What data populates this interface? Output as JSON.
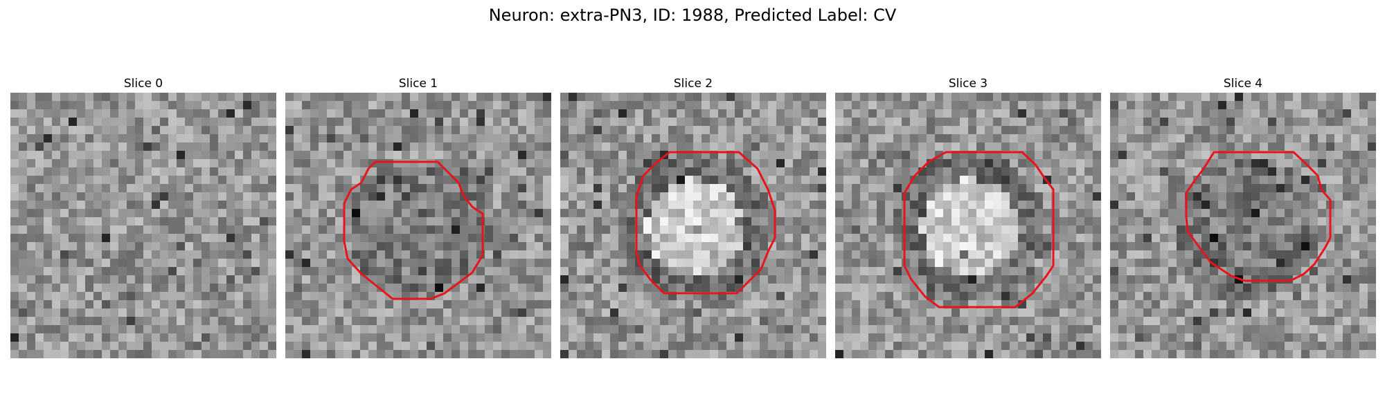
{
  "figure": {
    "title": "Neuron: extra-PN3, ID: 1988, Predicted Label: CV"
  },
  "panels": [
    {
      "title": "Slice 0",
      "has_contour": false,
      "seed": 11,
      "blob": "none"
    },
    {
      "title": "Slice 1",
      "has_contour": true,
      "seed": 23,
      "blob": "dark"
    },
    {
      "title": "Slice 2",
      "has_contour": true,
      "seed": 37,
      "blob": "bright"
    },
    {
      "title": "Slice 3",
      "has_contour": true,
      "seed": 53,
      "blob": "bright"
    },
    {
      "title": "Slice 4",
      "has_contour": true,
      "seed": 71,
      "blob": "dark"
    }
  ],
  "colors": {
    "contour": "#e8141c",
    "background": "#ffffff"
  }
}
